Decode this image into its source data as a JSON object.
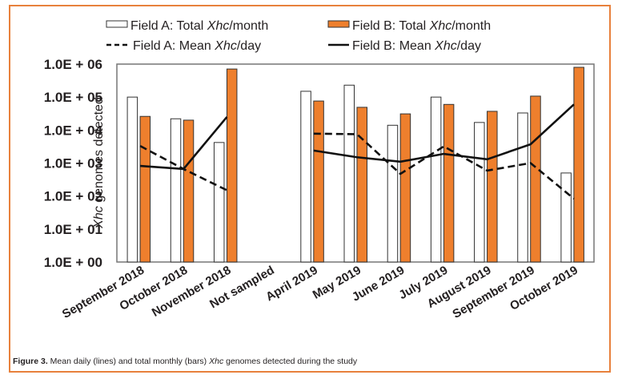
{
  "caption": {
    "label": "Figure 3.",
    "text_before": " Mean daily (lines) and total monthly (bars) ",
    "italic": "Xhc",
    "text_after": " genomes detected during the study"
  },
  "chart_data": {
    "type": "bar",
    "yscale": "log",
    "ylabel_italic": "Xhc",
    "ylabel_rest": " genomes detected",
    "ylim": [
      1,
      1000000
    ],
    "yticks": [
      "1.0E+00",
      "1.0E+01",
      "1.0E+02",
      "1.0E+03",
      "1.0E+04",
      "1.0E+05",
      "1.0E+06"
    ],
    "categories": [
      "September 2018",
      "October 2018",
      "November 2018",
      "Not sampled",
      "April 2019",
      "May 2019",
      "June 2019",
      "July 2019",
      "August 2019",
      "September 2019",
      "October 2019"
    ],
    "legend_position": "top",
    "series": [
      {
        "name": "Field A: Total Xhc/month",
        "label_pre": "Field A: Total ",
        "label_it": "Xhc",
        "label_post": "/month",
        "kind": "bar",
        "color": "#ffffff",
        "values": [
          100000,
          22000,
          4200,
          null,
          150000,
          230000,
          14000,
          100000,
          17000,
          33000,
          500
        ]
      },
      {
        "name": "Field B: Total Xhc/month",
        "label_pre": "Field B: Total ",
        "label_it": "Xhc",
        "label_post": "/month",
        "kind": "bar",
        "color": "#ee7f2d",
        "values": [
          26000,
          20000,
          710000,
          null,
          76000,
          49000,
          31000,
          60000,
          37000,
          107000,
          800000
        ]
      },
      {
        "name": "Field A: Mean Xhc/day",
        "label_pre": "Field A: Mean ",
        "label_it": "Xhc",
        "label_post": "/day",
        "kind": "line",
        "style": "dashed",
        "color": "#111111",
        "values": [
          3300,
          660,
          150,
          null,
          7800,
          7500,
          470,
          3200,
          590,
          1000,
          83
        ]
      },
      {
        "name": "Field B: Mean Xhc/day",
        "label_pre": "Field B: Mean ",
        "label_it": "Xhc",
        "label_post": "/day",
        "kind": "line",
        "style": "solid",
        "color": "#111111",
        "values": [
          820,
          660,
          25000,
          null,
          2400,
          1500,
          1100,
          1900,
          1300,
          3700,
          60000
        ]
      }
    ]
  }
}
